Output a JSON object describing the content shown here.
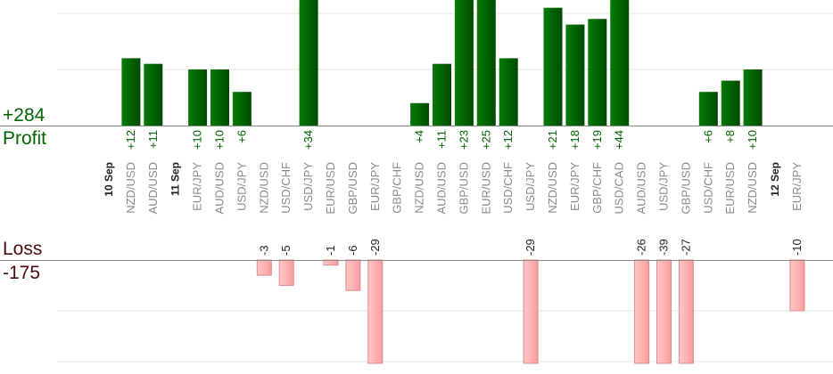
{
  "summary": {
    "profit_total": "+284",
    "profit_label": "Profit",
    "loss_label": "Loss",
    "loss_total": "-175"
  },
  "colors": {
    "profit_bar": "#006400",
    "profit_text": "#006400",
    "loss_bar": "#ffb3b3",
    "loss_border": "#e08a8a",
    "label_text": "#8a8a8a",
    "date_text": "#222222",
    "grid": "#e6e6e6",
    "axis": "#888888"
  },
  "chart_data": {
    "type": "bar",
    "title": "",
    "profit_ylim": [
      0,
      24
    ],
    "loss_ylim": [
      0,
      21
    ],
    "categories": [
      {
        "label": "10 Sep",
        "is_date": true,
        "profit": null,
        "loss": null
      },
      {
        "label": "NZD/USD",
        "profit": 12,
        "loss": null
      },
      {
        "label": "AUD/USD",
        "profit": 11,
        "loss": null
      },
      {
        "label": "11 Sep",
        "is_date": true,
        "profit": null,
        "loss": null
      },
      {
        "label": "EUR/JPY",
        "profit": 10,
        "loss": null
      },
      {
        "label": "AUD/USD",
        "profit": 10,
        "loss": null
      },
      {
        "label": "USD/JPY",
        "profit": 6,
        "loss": null
      },
      {
        "label": "NZD/USD",
        "profit": null,
        "loss": -3
      },
      {
        "label": "USD/CHF",
        "profit": null,
        "loss": -5
      },
      {
        "label": "USD/JPY",
        "profit": 34,
        "loss": null
      },
      {
        "label": "EUR/USD",
        "profit": null,
        "loss": -1
      },
      {
        "label": "GBP/USD",
        "profit": null,
        "loss": -6
      },
      {
        "label": "EUR/JPY",
        "profit": null,
        "loss": -29
      },
      {
        "label": "GBP/CHF",
        "profit": null,
        "loss": null
      },
      {
        "label": "NZD/USD",
        "profit": 4,
        "loss": null
      },
      {
        "label": "AUD/USD",
        "profit": 11,
        "loss": null
      },
      {
        "label": "GBP/USD",
        "profit": 23,
        "loss": null
      },
      {
        "label": "EUR/USD",
        "profit": 25,
        "loss": null
      },
      {
        "label": "USD/CHF",
        "profit": 12,
        "loss": null
      },
      {
        "label": "USD/JPY",
        "profit": null,
        "loss": -29
      },
      {
        "label": "NZD/USD",
        "profit": 21,
        "loss": null
      },
      {
        "label": "EUR/JPY",
        "profit": 18,
        "loss": null
      },
      {
        "label": "GBP/CHF",
        "profit": 19,
        "loss": null
      },
      {
        "label": "USD/CAD",
        "profit": 44,
        "loss": null
      },
      {
        "label": "AUD/USD",
        "profit": null,
        "loss": -26
      },
      {
        "label": "USD/JPY",
        "profit": null,
        "loss": -39
      },
      {
        "label": "GBP/USD",
        "profit": null,
        "loss": -27
      },
      {
        "label": "USD/CHF",
        "profit": 6,
        "loss": null
      },
      {
        "label": "EUR/USD",
        "profit": 8,
        "loss": null
      },
      {
        "label": "NZD/USD",
        "profit": 10,
        "loss": null
      },
      {
        "label": "12 Sep",
        "is_date": true,
        "profit": null,
        "loss": null
      },
      {
        "label": "EUR/JPY",
        "profit": null,
        "loss": -10
      }
    ]
  }
}
